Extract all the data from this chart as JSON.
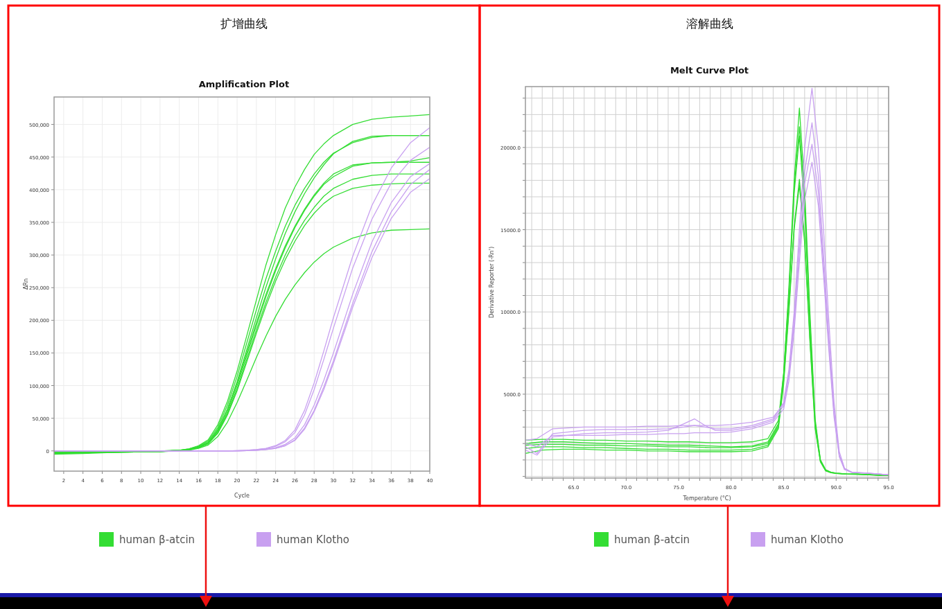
{
  "chart_data": [
    {
      "type": "line",
      "title": "扩增曲线",
      "subtitle": "Amplification Plot",
      "xlabel": "Cycle",
      "ylabel": "ΔRn",
      "grid": true,
      "legend": "bottom",
      "xlim": [
        1,
        40
      ],
      "ylim": [
        -31000,
        542000
      ],
      "xticks": [
        2,
        4,
        6,
        8,
        10,
        12,
        14,
        16,
        18,
        20,
        22,
        24,
        26,
        28,
        30,
        32,
        34,
        36,
        38,
        40
      ],
      "yticks": [
        0,
        {
          "value": 50000,
          "label": "50,000"
        },
        {
          "value": 100000,
          "label": "100,000"
        },
        {
          "value": 150000,
          "label": "150,000"
        },
        {
          "value": 200000,
          "label": "200,000"
        },
        {
          "value": 250000,
          "label": "250,000"
        },
        {
          "value": 300000,
          "label": "300,000"
        },
        {
          "value": 350000,
          "label": "350,000"
        },
        {
          "value": 400000,
          "label": "400,000"
        },
        {
          "value": 450000,
          "label": "450,000"
        },
        {
          "value": 500000,
          "label": "500,000"
        }
      ],
      "x": [
        1,
        4,
        8,
        12,
        14,
        15,
        16,
        17,
        18,
        19,
        20,
        21,
        22,
        23,
        24,
        25,
        26,
        27,
        28,
        29,
        30,
        32,
        34,
        36,
        38,
        40
      ],
      "series": [
        {
          "name": "human β-atcin",
          "color": "#33dd33",
          "values": [
            -3000,
            -3000,
            -2000,
            -1000,
            1000,
            3000,
            8000,
            17000,
            40000,
            76000,
            122000,
            176000,
            231000,
            285000,
            331000,
            372000,
            404000,
            431000,
            454000,
            470000,
            483000,
            500000,
            508000,
            511000,
            513000,
            515000
          ]
        },
        {
          "color": "#33dd33",
          "values": [
            -5000,
            -4000,
            -2000,
            -1000,
            1000,
            3000,
            7000,
            15000,
            36000,
            70000,
            114000,
            165000,
            216000,
            264000,
            306000,
            344000,
            376000,
            402000,
            424000,
            442000,
            456000,
            472000,
            480000,
            483000,
            483000,
            483000
          ]
        },
        {
          "color": "#33dd33",
          "values": [
            -2000,
            -2000,
            -1000,
            0,
            1000,
            2000,
            6000,
            13000,
            32000,
            64000,
            106000,
            155000,
            204000,
            251000,
            294000,
            333000,
            366000,
            394000,
            418000,
            438000,
            455000,
            474000,
            482000,
            483000,
            483000,
            483000
          ]
        },
        {
          "color": "#33dd33",
          "values": [
            -4000,
            -3000,
            -2000,
            -1000,
            1000,
            2000,
            6000,
            13000,
            33000,
            64000,
            104000,
            150000,
            196000,
            240000,
            279000,
            314000,
            344000,
            370000,
            392000,
            410000,
            424000,
            438000,
            441000,
            442000,
            444000,
            449000
          ]
        },
        {
          "color": "#33dd33",
          "values": [
            -3000,
            -3000,
            -2000,
            -1000,
            0,
            2000,
            5000,
            12000,
            30000,
            60000,
            100000,
            146000,
            192000,
            236000,
            276000,
            311000,
            342000,
            368000,
            390000,
            408000,
            420000,
            436000,
            441000,
            442000,
            442000,
            442000
          ]
        },
        {
          "color": "#33dd33",
          "values": [
            -2000,
            -2000,
            -1000,
            0,
            1000,
            2000,
            5000,
            11000,
            28000,
            57000,
            95000,
            140000,
            185000,
            228000,
            266000,
            300000,
            329000,
            353000,
            373000,
            390000,
            402000,
            416000,
            422000,
            424000,
            424000,
            424000
          ]
        },
        {
          "color": "#33dd33",
          "values": [
            -4000,
            -3000,
            -2000,
            -1000,
            0,
            2000,
            5000,
            11000,
            27000,
            55000,
            92000,
            136000,
            180000,
            222000,
            260000,
            293000,
            321000,
            345000,
            364000,
            379000,
            390000,
            402000,
            407000,
            409000,
            410000,
            410000
          ]
        },
        {
          "color": "#33dd33",
          "values": [
            -1000,
            -1000,
            -1000,
            0,
            0,
            1000,
            4000,
            9000,
            22000,
            44000,
            74000,
            108000,
            143000,
            176000,
            206000,
            232000,
            254000,
            273000,
            289000,
            302000,
            312000,
            326000,
            334000,
            338000,
            339000,
            340000
          ]
        },
        {
          "name": "human Klotho",
          "color": "#c8a0f0",
          "values": [
            0,
            0,
            0,
            0,
            0,
            0,
            0,
            0,
            0,
            0,
            500,
            1000,
            2000,
            4000,
            8000,
            16000,
            32000,
            62000,
            104000,
            153000,
            204000,
            298000,
            376000,
            433000,
            472000,
            495000
          ]
        },
        {
          "color": "#c8a0f0",
          "values": [
            0,
            0,
            0,
            0,
            0,
            0,
            0,
            0,
            0,
            0,
            500,
            1000,
            2000,
            3500,
            7000,
            14000,
            28000,
            55000,
            94000,
            140000,
            188000,
            280000,
            355000,
            410000,
            445000,
            465000
          ]
        },
        {
          "color": "#c8a0f0",
          "values": [
            0,
            0,
            0,
            0,
            0,
            0,
            0,
            0,
            0,
            0,
            0,
            500,
            1000,
            2500,
            5000,
            10000,
            20000,
            40000,
            70000,
            108000,
            150000,
            240000,
            320000,
            380000,
            420000,
            440000
          ]
        },
        {
          "color": "#c8a0f0",
          "values": [
            0,
            0,
            0,
            0,
            0,
            0,
            0,
            0,
            0,
            0,
            0,
            500,
            1000,
            2000,
            4000,
            8000,
            17000,
            35000,
            62000,
            98000,
            138000,
            226000,
            305000,
            366000,
            408000,
            431000
          ]
        },
        {
          "color": "#c8a0f0",
          "values": [
            0,
            0,
            0,
            0,
            0,
            0,
            0,
            0,
            0,
            0,
            0,
            500,
            1000,
            2000,
            4000,
            8000,
            16000,
            33000,
            60000,
            94000,
            134000,
            220000,
            296000,
            356000,
            396000,
            417000
          ]
        }
      ]
    },
    {
      "type": "line",
      "title": "溶解曲线",
      "subtitle": "Melt Curve Plot",
      "xlabel": "Temperature (°C)",
      "ylabel": "Derivative Reporter (-Rn')",
      "grid": true,
      "legend": "bottom",
      "xlim": [
        60.4,
        95
      ],
      "ylim": [
        -100,
        23700
      ],
      "xticks": [
        {
          "value": 61,
          "label": null
        },
        {
          "value": 62,
          "label": null
        },
        {
          "value": 63,
          "label": null
        },
        {
          "value": 64,
          "label": null
        },
        {
          "value": 65,
          "label": "65.0"
        },
        {
          "value": 66,
          "label": null
        },
        {
          "value": 67,
          "label": null
        },
        {
          "value": 68,
          "label": null
        },
        {
          "value": 69,
          "label": null
        },
        {
          "value": 70,
          "label": "70.0"
        },
        {
          "value": 71,
          "label": null
        },
        {
          "value": 72,
          "label": null
        },
        {
          "value": 73,
          "label": null
        },
        {
          "value": 74,
          "label": null
        },
        {
          "value": 75,
          "label": "75.0"
        },
        {
          "value": 76,
          "label": null
        },
        {
          "value": 77,
          "label": null
        },
        {
          "value": 78,
          "label": null
        },
        {
          "value": 79,
          "label": null
        },
        {
          "value": 80,
          "label": "80.0"
        },
        {
          "value": 81,
          "label": null
        },
        {
          "value": 82,
          "label": null
        },
        {
          "value": 83,
          "label": null
        },
        {
          "value": 84,
          "label": null
        },
        {
          "value": 85,
          "label": "85.0"
        },
        {
          "value": 86,
          "label": null
        },
        {
          "value": 87,
          "label": null
        },
        {
          "value": 88,
          "label": null
        },
        {
          "value": 89,
          "label": null
        },
        {
          "value": 90,
          "label": "90.0"
        },
        {
          "value": 91,
          "label": null
        },
        {
          "value": 92,
          "label": null
        },
        {
          "value": 93,
          "label": null
        },
        {
          "value": 94,
          "label": null
        },
        {
          "value": 95,
          "label": "95.0"
        }
      ],
      "yticks": [
        {
          "value": 0,
          "label": null
        },
        {
          "value": 1000,
          "label": null
        },
        {
          "value": 2000,
          "label": null
        },
        {
          "value": 3000,
          "label": null
        },
        {
          "value": 4000,
          "label": null
        },
        {
          "value": 5000,
          "label": "5000.0"
        },
        {
          "value": 6000,
          "label": null
        },
        {
          "value": 7000,
          "label": null
        },
        {
          "value": 8000,
          "label": null
        },
        {
          "value": 9000,
          "label": null
        },
        {
          "value": 10000,
          "label": "10000.0"
        },
        {
          "value": 11000,
          "label": null
        },
        {
          "value": 12000,
          "label": null
        },
        {
          "value": 13000,
          "label": null
        },
        {
          "value": 14000,
          "label": null
        },
        {
          "value": 15000,
          "label": "15000.0"
        },
        {
          "value": 16000,
          "label": null
        },
        {
          "value": 17000,
          "label": null
        },
        {
          "value": 18000,
          "label": null
        },
        {
          "value": 19000,
          "label": null
        },
        {
          "value": 20000,
          "label": "20000.0"
        },
        {
          "value": 21000,
          "label": null
        },
        {
          "value": 22000,
          "label": null
        },
        {
          "value": 23000,
          "label": null
        }
      ],
      "x": [
        60.4,
        62,
        64,
        66,
        68,
        70,
        72,
        74,
        76,
        78,
        80,
        82,
        83.5,
        84.5,
        85,
        85.5,
        86,
        86.5,
        87,
        87.5,
        88,
        88.5,
        89,
        89.5,
        90,
        91,
        92,
        95
      ],
      "series": [
        {
          "name": "human β-atcin",
          "color": "#33dd33",
          "values": [
            2000,
            2100,
            2100,
            2050,
            2000,
            2000,
            1950,
            1900,
            1900,
            1850,
            1800,
            1850,
            2100,
            3200,
            6200,
            11500,
            18000,
            22400,
            17500,
            10000,
            3500,
            1000,
            400,
            250,
            200,
            150,
            150,
            50
          ]
        },
        {
          "color": "#33dd33",
          "values": [
            1700,
            1800,
            1800,
            1750,
            1750,
            1700,
            1650,
            1650,
            1600,
            1600,
            1600,
            1650,
            1900,
            3000,
            6000,
            11000,
            17500,
            21260,
            16800,
            9500,
            3300,
            1000,
            400,
            250,
            200,
            150,
            150,
            50
          ]
        },
        {
          "color": "#33dd33",
          "values": [
            2200,
            2250,
            2250,
            2200,
            2200,
            2150,
            2150,
            2100,
            2100,
            2050,
            2050,
            2100,
            2300,
            3400,
            6300,
            11200,
            17200,
            20700,
            16200,
            9200,
            3200,
            950,
            380,
            240,
            190,
            150,
            140,
            50
          ]
        },
        {
          "color": "#33dd33",
          "values": [
            1900,
            1950,
            1950,
            1900,
            1900,
            1850,
            1850,
            1800,
            1800,
            1750,
            1750,
            1800,
            2000,
            3100,
            5800,
            10200,
            15200,
            18060,
            14500,
            8400,
            3000,
            900,
            350,
            230,
            180,
            140,
            130,
            50
          ]
        },
        {
          "color": "#33dd33",
          "values": [
            1400,
            1600,
            1650,
            1650,
            1600,
            1600,
            1550,
            1550,
            1500,
            1500,
            1500,
            1550,
            1800,
            2900,
            5600,
            10000,
            15000,
            17700,
            14200,
            8200,
            2900,
            880,
            340,
            220,
            180,
            140,
            130,
            50
          ]
        },
        {
          "name": "human Klotho",
          "color": "#c8a0f0",
          "x": [
            60.4,
            61.5,
            63,
            66,
            68,
            70,
            72,
            74,
            75.5,
            76.5,
            77.5,
            78.5,
            80,
            82,
            84,
            85,
            85.5,
            86,
            86.5,
            87,
            87.7,
            88.3,
            88.8,
            89.3,
            89.8,
            90.3,
            90.8,
            91.5,
            93,
            95
          ],
          "values": [
            1800,
            1400,
            2600,
            2800,
            2850,
            2850,
            2850,
            2900,
            3000,
            3100,
            3000,
            2900,
            2900,
            3100,
            3500,
            4500,
            6500,
            10000,
            15000,
            20000,
            23600,
            20000,
            15000,
            9500,
            4500,
            1500,
            500,
            250,
            200,
            100
          ]
        },
        {
          "color": "#c8a0f0",
          "x": [
            60.4,
            61.5,
            63,
            66,
            68,
            70,
            72,
            74,
            75.5,
            76.5,
            77.5,
            78.5,
            80,
            82,
            84,
            85,
            85.5,
            86,
            86.5,
            87,
            87.7,
            88.3,
            88.8,
            89.3,
            89.8,
            90.3,
            90.8,
            91.5,
            93,
            95
          ],
          "values": [
            1600,
            1300,
            2400,
            2600,
            2650,
            2650,
            2700,
            2800,
            3200,
            3500,
            3100,
            2800,
            2800,
            3000,
            3400,
            4300,
            6200,
            9500,
            14000,
            18500,
            21500,
            18300,
            13500,
            8500,
            4000,
            1300,
            450,
            250,
            200,
            100
          ]
        },
        {
          "color": "#c8a0f0",
          "x": [
            60.4,
            61.5,
            63,
            66,
            68,
            70,
            72,
            74,
            75.5,
            76.5,
            77.5,
            78.5,
            80,
            82,
            84,
            85,
            85.5,
            86,
            86.5,
            87,
            87.7,
            88.3,
            88.8,
            89.3,
            89.8,
            90.3,
            90.8,
            91.5,
            93,
            95
          ],
          "values": [
            2000,
            1800,
            2500,
            2500,
            2500,
            2550,
            2550,
            2600,
            2600,
            2650,
            2650,
            2650,
            2700,
            2900,
            3300,
            4100,
            5800,
            8800,
            13000,
            16800,
            19100,
            16500,
            12200,
            7700,
            3600,
            1200,
            420,
            240,
            190,
            100
          ]
        },
        {
          "color": "#c8a0f0",
          "x": [
            60.4,
            61.5,
            63,
            66,
            68,
            70,
            72,
            74,
            75.5,
            76.5,
            77.5,
            78.5,
            80,
            82,
            84,
            85,
            85.5,
            86,
            86.5,
            87,
            87.7,
            88.3,
            88.8,
            89.3,
            89.8,
            90.3,
            90.8,
            91.5,
            93,
            95
          ],
          "values": [
            2200,
            2300,
            2900,
            3000,
            3000,
            3000,
            3050,
            3050,
            3100,
            3100,
            3100,
            3100,
            3150,
            3300,
            3600,
            4400,
            6200,
            9300,
            13800,
            17800,
            20200,
            17300,
            12800,
            8100,
            3800,
            1250,
            430,
            240,
            190,
            100
          ]
        }
      ]
    }
  ]
}
